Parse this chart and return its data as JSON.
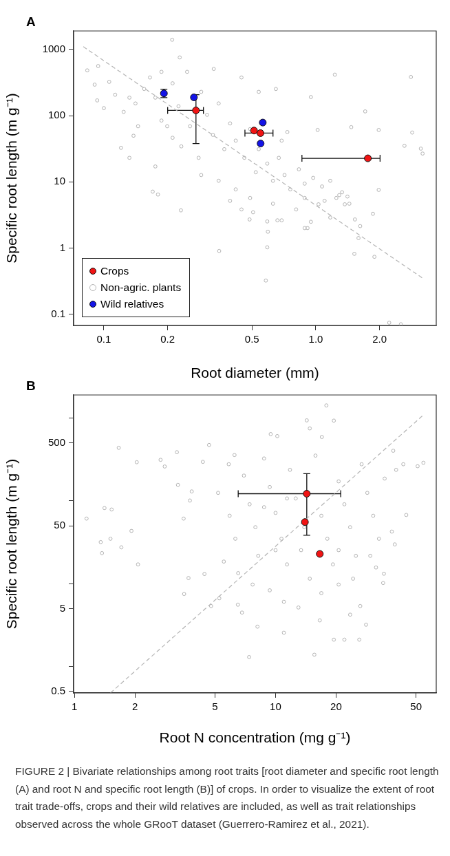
{
  "chart_data": [
    {
      "type": "scatter",
      "title": "A",
      "xlabel": "Root diameter (mm)",
      "ylabel": "Specific root length (m g⁻¹)",
      "log": "xy",
      "marker": "circle",
      "legend": "bottom left",
      "xlim": [
        0.072,
        3.7
      ],
      "ylim": [
        0.068,
        1900
      ],
      "xticks": [
        0.1,
        0.2,
        0.5,
        {
          "value": 1,
          "label": "1.0"
        },
        {
          "value": 2,
          "label": "2.0"
        }
      ],
      "yticks": [
        0.1,
        1,
        10,
        100,
        1000
      ],
      "series": [
        {
          "name": "Crops",
          "color": "#f01414",
          "x": [
            0.272,
            0.511,
            0.548,
            1.76
          ],
          "values": [
            120,
            59.6,
            54.5,
            22.7
          ],
          "errors": [
            [
              38,
              207
            ],
            null,
            null,
            null
          ],
          "xerrors": [
            [
              0.2,
              0.295
            ],
            null,
            [
              0.463,
              0.628
            ],
            [
              0.86,
              2.01
            ]
          ]
        },
        {
          "name": "Non-agric. plants",
          "color": "#b4b4b4",
          "x": [
            0.0835,
            0.094,
            0.0905,
            0.093,
            0.1,
            0.1205,
            0.132,
            0.138,
            0.175,
            0.231,
            0.18,
            0.17,
            0.35,
            0.581,
            0.59,
            0.594,
            0.59,
            0.487,
            0.659,
            0.69,
            0.886,
            0.914,
            0.948,
            1.52,
            1.89,
            1.59,
            1.62,
            1.86,
            1.53,
            1.98,
            1.98,
            1.71,
            1.47,
            2.81,
            2.85,
            2.62,
            3.13,
            3.19,
            1.23,
            0.948,
            1.02,
            2.22,
            2.52,
            0.228,
            0.33,
            1.37,
            1.29,
            1.03,
            1.17,
            0.113,
            0.124,
            0.141,
            0.155,
            0.165,
            0.175,
            0.187,
            0.211,
            0.225,
            0.247,
            0.255,
            0.288,
            0.307,
            0.327,
            0.348,
            0.37,
            0.394,
            0.419,
            0.446,
            0.46,
            0.49,
            0.521,
            0.538,
            0.59,
            0.628,
            0.669,
            0.712,
            0.758,
            0.832,
            0.886,
            0.972,
            1.07,
            1.17,
            1.25,
            1.33,
            1.44,
            1.41,
            0.49,
            0.419,
            0.394,
            0.348,
            0.288,
            0.28,
            0.232,
            0.211,
            0.199,
            0.145,
            0.132,
            0.106,
            0.187,
            0.538,
            0.648,
            0.734,
            0.69,
            0.807,
            0.628,
            0.506,
            0.446,
            0.886,
            1.1,
            0.21
          ],
          "values": [
            483,
            561,
            294,
            170,
            130,
            32.7,
            23.1,
            49.8,
            17.1,
            3.72,
            6.45,
            7.13,
            0.906,
            0.324,
            1.03,
            1.77,
            2.53,
            2.71,
            2.63,
            2.63,
            2.01,
            2.01,
            2.5,
            0.82,
            0.74,
            1.42,
            2.15,
            3.3,
            2.71,
            7.57,
            60.8,
            116,
            67.1,
            384,
            55.6,
            35.1,
            31.8,
            26.8,
            416,
            191,
            60.8,
            0.0748,
            0.071,
            757,
            508,
            4.59,
            6.32,
            4.59,
            2.9,
            207,
            114,
            153,
            253,
            377,
            187,
            84.4,
            308,
            139,
            459,
            69.2,
            229,
            103,
            51.3,
            153,
            31.2,
            76.4,
            42,
            377,
            23.1,
            62.7,
            14.0,
            31.2,
            18.9,
            10.4,
            23.1,
            12.7,
            7.71,
            15.5,
            9.42,
            11.5,
            8.53,
            10.4,
            5.72,
            6.98,
            4.69,
            6.01,
            5.72,
            7.71,
            5.18,
            10.4,
            12.7,
            23.1,
            34.4,
            46.4,
            69.2,
            69.2,
            187,
            324,
            459,
            229,
            253,
            56.6,
            42,
            3.84,
            4.69,
            3.48,
            3.84,
            5.72,
            5.18,
            1400
          ]
        },
        {
          "name": "Wild relatives",
          "color": "#1414e6",
          "x": [
            0.192,
            0.266,
            0.562,
            0.549
          ],
          "values": [
            217,
            189,
            78.7,
            38
          ],
          "errors": [
            [
              187,
              251
            ],
            null,
            null,
            null
          ]
        },
        {
          "type": "line",
          "color": "#b4b4b4",
          "line_style": "dashed",
          "marker": "none",
          "x": [
            0.08,
            3.2
          ],
          "values": [
            1100,
            0.35
          ]
        }
      ]
    },
    {
      "type": "scatter",
      "title": "B",
      "xlabel": "Root N concentration (mg g⁻¹)",
      "ylabel": "Specific root length (m g⁻¹)",
      "log": "xy",
      "marker": "circle",
      "xlim": [
        0.99,
        63
      ],
      "ylim": [
        0.48,
        1900
      ],
      "xticks": [
        1,
        2,
        5,
        10,
        20,
        50
      ],
      "yticks": [
        0.5,
        {
          "value": 1,
          "label": null
        },
        5,
        {
          "value": 10,
          "label": null
        },
        50,
        {
          "value": 100,
          "label": null
        },
        500,
        {
          "value": 1000,
          "label": null
        }
      ],
      "annotations": [
        "FIGURE 2 | Bivariate relationships among root traits [root diameter and specific root length (A) and root N and specific root length (B)] of crops. In order to visualize the extent of root trait trade-offs, crops and their wild relatives are included, as well as trait relationships observed across the whole GRooT dataset (Guerrero-Ramirez et al., 2021)."
      ],
      "series": [
        {
          "color": "#f01414",
          "x": [
            14.3,
            14.0,
            16.6
          ],
          "values": [
            122,
            55.5,
            22.9
          ],
          "errors": [
            [
              38.5,
              213
            ],
            null,
            null
          ],
          "xerrors": [
            [
              6.52,
              21.1
            ],
            null,
            null
          ]
        },
        {
          "color": "#b4b4b4",
          "x": [
            1.148,
            1.35,
            1.37,
            1.41,
            1.51,
            1.53,
            1.66,
            1.71,
            1.92,
            2.04,
            2.07,
            2.68,
            2.81,
            3.23,
            3.27,
            3.49,
            3.51,
            3.69,
            3.83,
            3.75,
            4.35,
            4.43,
            4.67,
            4.78,
            5.25,
            5.85,
            6.25,
            6.5,
            6.81,
            7.39,
            8.13,
            9.46,
            10.2,
            11.0,
            14.3,
            14.8,
            17.9,
            19.5,
            17.0,
            15.6,
            16.6,
            19.5,
            22.0,
            26.1,
            28.2,
            44.7,
            54.4,
            50.9,
            43.2,
            38.5,
            34.3,
            34.6,
            37.9,
            39.2,
            31.6,
            26.4,
            23.5,
            5.18,
            5.91,
            6.31,
            6.96,
            7.43,
            7.94,
            8.2,
            8.77,
            9.36,
            10,
            10.7,
            11.4,
            11.8,
            12.6,
            13.4,
            14.8,
            15.8,
            16.9,
            18.1,
            19.3,
            20.6,
            22.0,
            23.5,
            25.1,
            26.8,
            28.6,
            30.6,
            32.7,
            34.9,
            39.8,
            5.53,
            6.52,
            7.69,
            9.36,
            11.0,
            13.0,
            16.9,
            20.6,
            24.3,
            10,
            13.9,
            8.77,
            11.4,
            20.6,
            29.6
          ],
          "values": [
            61.1,
            31.8,
            23.4,
            81.9,
            34.9,
            78.7,
            437,
            27.5,
            43.4,
            293,
            17.1,
            313,
            260,
            387,
            156,
            61.1,
            7.51,
            11.7,
            130,
            101,
            296,
            13.1,
            473,
            5.37,
            6.67,
            277,
            358,
            5.58,
            4.48,
            1.3,
            3.03,
            640,
            605,
            2.56,
            938,
            750,
            1420,
            931,
            591,
            1.39,
            3.61,
            2.11,
            2.11,
            2.11,
            3.2,
            67.6,
            288,
            262,
            277,
            403,
            10.2,
            13.2,
            42.6,
            29.8,
            15.7,
            5.37,
            4.23,
            125,
            66.1,
            34.9,
            202,
            91,
            48.1,
            21.7,
            325,
            147,
            71.6,
            34.9,
            17.1,
            237,
            107,
            25.4,
            11.5,
            352,
            66.1,
            34.9,
            17.1,
            172,
            91,
            48.1,
            21.7,
            277,
            125,
            66.1,
            34.9,
            186,
            237,
            18.5,
            13.4,
            9.77,
            8.32,
            6.05,
            5.16,
            7.69,
            9.77,
            11.5,
            25.4,
            48.1,
            83.9,
            107,
            25.4,
            21.7
          ]
        },
        {
          "type": "line",
          "color": "#b4b4b4",
          "line_style": "dashed",
          "marker": "none",
          "x": [
            1.51,
            54.4
          ],
          "values": [
            0.48,
            1090
          ]
        }
      ]
    }
  ]
}
